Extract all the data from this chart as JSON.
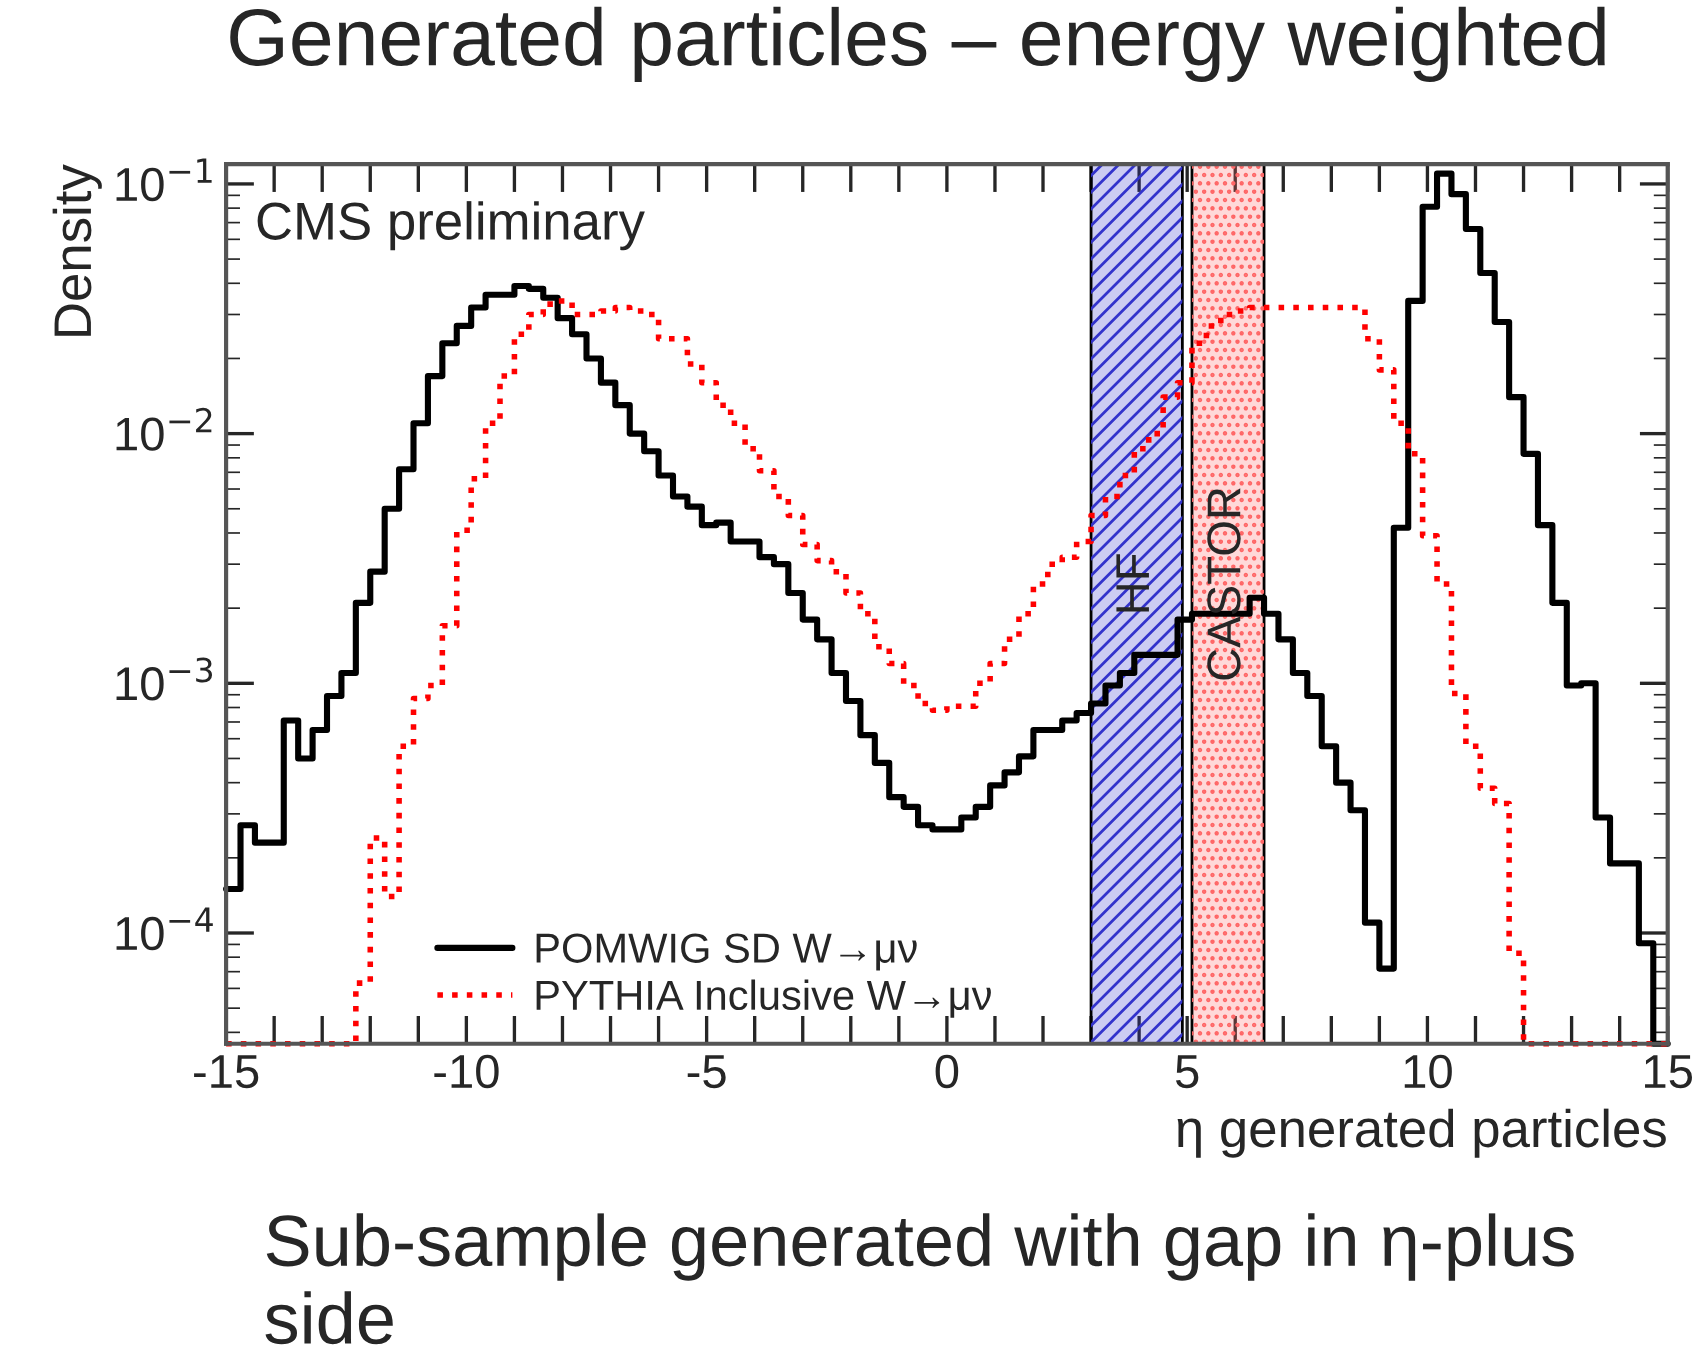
{
  "chart_data": {
    "type": "histogram",
    "title": "Generated particles – energy weighted",
    "xlabel": "η generated particles",
    "ylabel": "Density",
    "annotations": [
      "CMS preliminary",
      "Sub-sample generated with gap in η-plus side"
    ],
    "bins": [
      -15.0,
      -14.7,
      -14.4,
      -14.1,
      -13.8,
      -13.5,
      -13.2,
      -12.9,
      -12.6,
      -12.3,
      -12.0,
      -11.7,
      -11.4,
      -11.1,
      -10.8,
      -10.5,
      -10.2,
      -9.9,
      -9.6,
      -9.3,
      -9.0,
      -8.7,
      -8.4,
      -8.1,
      -7.8,
      -7.5,
      -7.2,
      -6.9,
      -6.6,
      -6.3,
      -6.0,
      -5.7,
      -5.4,
      -5.1,
      -4.8,
      -4.5,
      -4.2,
      -3.9,
      -3.6,
      -3.3,
      -3.0,
      -2.7,
      -2.4,
      -2.1,
      -1.8,
      -1.5,
      -1.2,
      -0.9,
      -0.6,
      -0.3,
      0.0,
      0.3,
      0.6,
      0.9,
      1.2,
      1.5,
      1.8,
      2.1,
      2.4,
      2.7,
      3.0,
      3.3,
      3.6,
      3.9,
      4.2,
      4.5,
      4.8,
      5.1,
      5.4,
      5.7,
      6.0,
      6.3,
      6.6,
      6.9,
      7.2,
      7.5,
      7.8,
      8.1,
      8.4,
      8.7,
      9.0,
      9.3,
      9.6,
      9.9,
      10.2,
      10.5,
      10.8,
      11.1,
      11.4,
      11.7,
      12.0,
      12.3,
      12.6,
      12.9,
      13.2,
      13.5,
      13.8,
      14.1,
      14.4,
      14.7,
      15.0
    ],
    "series": [
      {
        "name": "POMWIG SD W→μν",
        "color": "#000000",
        "line_style": "solid",
        "values": [
          0.00015,
          0.00027,
          0.00023,
          0.00023,
          0.00071,
          0.0005,
          0.00065,
          0.00089,
          0.0011,
          0.0021,
          0.0028,
          0.005,
          0.0072,
          0.011,
          0.017,
          0.023,
          0.027,
          0.032,
          0.036,
          0.036,
          0.039,
          0.038,
          0.035,
          0.029,
          0.025,
          0.02,
          0.016,
          0.013,
          0.01,
          0.0085,
          0.0068,
          0.0056,
          0.0051,
          0.0043,
          0.0044,
          0.0037,
          0.0037,
          0.0032,
          0.003,
          0.0023,
          0.0018,
          0.0015,
          0.0011,
          0.00085,
          0.00062,
          0.00048,
          0.00035,
          0.00032,
          0.00027,
          0.00026,
          0.00026,
          0.00029,
          0.00032,
          0.00039,
          0.00044,
          0.00051,
          0.00065,
          0.00065,
          0.00071,
          0.00076,
          0.00083,
          0.00098,
          0.0011,
          0.0013,
          0.0013,
          0.0013,
          0.0018,
          0.0019,
          0.0019,
          0.0019,
          0.0019,
          0.0022,
          0.0019,
          0.0015,
          0.0011,
          0.00089,
          0.00056,
          0.0004,
          0.00031,
          0.00011,
          7.2e-05,
          0.0042,
          0.034,
          0.081,
          0.11,
          0.091,
          0.066,
          0.044,
          0.028,
          0.014,
          0.0083,
          0.0043,
          0.0021,
          0.00098,
          0.001,
          0.00029,
          0.00019,
          0.00019,
          9.1e-05,
          null
        ]
      },
      {
        "name": "PYTHIA Inclusive W→μν",
        "color": "#ff0000",
        "line_style": "dotted",
        "values": [
          null,
          null,
          null,
          null,
          null,
          null,
          null,
          null,
          null,
          6.3e-05,
          0.00024,
          0.00014,
          0.00056,
          0.00087,
          0.00098,
          0.0017,
          0.0041,
          0.0066,
          0.011,
          0.017,
          0.025,
          0.03,
          0.033,
          0.034,
          0.03,
          0.03,
          0.031,
          0.032,
          0.031,
          0.03,
          0.024,
          0.024,
          0.019,
          0.016,
          0.013,
          0.011,
          0.0087,
          0.0071,
          0.0056,
          0.0047,
          0.0036,
          0.0031,
          0.0028,
          0.0023,
          0.0019,
          0.0014,
          0.0012,
          0.00098,
          0.00083,
          0.00078,
          0.00081,
          0.00081,
          0.001,
          0.0012,
          0.0015,
          0.0019,
          0.0025,
          0.003,
          0.0032,
          0.0037,
          0.0047,
          0.0056,
          0.0068,
          0.0087,
          0.01,
          0.014,
          0.016,
          0.023,
          0.027,
          0.03,
          0.031,
          0.032,
          0.032,
          0.032,
          0.032,
          0.032,
          0.032,
          0.032,
          0.032,
          0.024,
          0.018,
          0.011,
          0.0083,
          0.0039,
          0.0025,
          0.00091,
          0.00056,
          0.00038,
          0.00033,
          8.3e-05,
          null,
          null,
          null,
          null,
          null,
          null,
          null,
          null,
          null,
          null
        ]
      }
    ],
    "bands": [
      {
        "axis": "x",
        "from": 3.0,
        "to": 4.9,
        "label": "HF",
        "color": "#3333cc"
      },
      {
        "axis": "x",
        "from": 5.1,
        "to": 6.6,
        "label": "CASTOR",
        "color": "#ff6666"
      }
    ],
    "log": "y",
    "xlim": [
      -15,
      15
    ],
    "ylim": [
      3.6e-05,
      0.12
    ],
    "xticks": [
      -15,
      {
        "value": -14,
        "label": null
      },
      {
        "value": -13,
        "label": null
      },
      {
        "value": -12,
        "label": null
      },
      {
        "value": -11,
        "label": null
      },
      -10,
      {
        "value": -9,
        "label": null
      },
      {
        "value": -8,
        "label": null
      },
      {
        "value": -7,
        "label": null
      },
      {
        "value": -6,
        "label": null
      },
      -5,
      {
        "value": -4,
        "label": null
      },
      {
        "value": -3,
        "label": null
      },
      {
        "value": -2,
        "label": null
      },
      {
        "value": -1,
        "label": null
      },
      0,
      {
        "value": 1,
        "label": null
      },
      {
        "value": 2,
        "label": null
      },
      {
        "value": 3,
        "label": null
      },
      {
        "value": 4,
        "label": null
      },
      5,
      {
        "value": 6,
        "label": null
      },
      {
        "value": 7,
        "label": null
      },
      {
        "value": 8,
        "label": null
      },
      {
        "value": 9,
        "label": null
      },
      10,
      {
        "value": 11,
        "label": null
      },
      {
        "value": 12,
        "label": null
      },
      {
        "value": 13,
        "label": null
      },
      {
        "value": 14,
        "label": null
      },
      15
    ],
    "yticks": [
      {
        "value": 0.0001,
        "label": "10$^{−4}$"
      },
      {
        "value": 0.001,
        "label": "10$^{−3}$"
      },
      {
        "value": 0.01,
        "label": "10$^{−2}$"
      },
      {
        "value": 0.1,
        "label": "10$^{−1}$"
      }
    ],
    "grid": false,
    "legend": "bottom left"
  }
}
